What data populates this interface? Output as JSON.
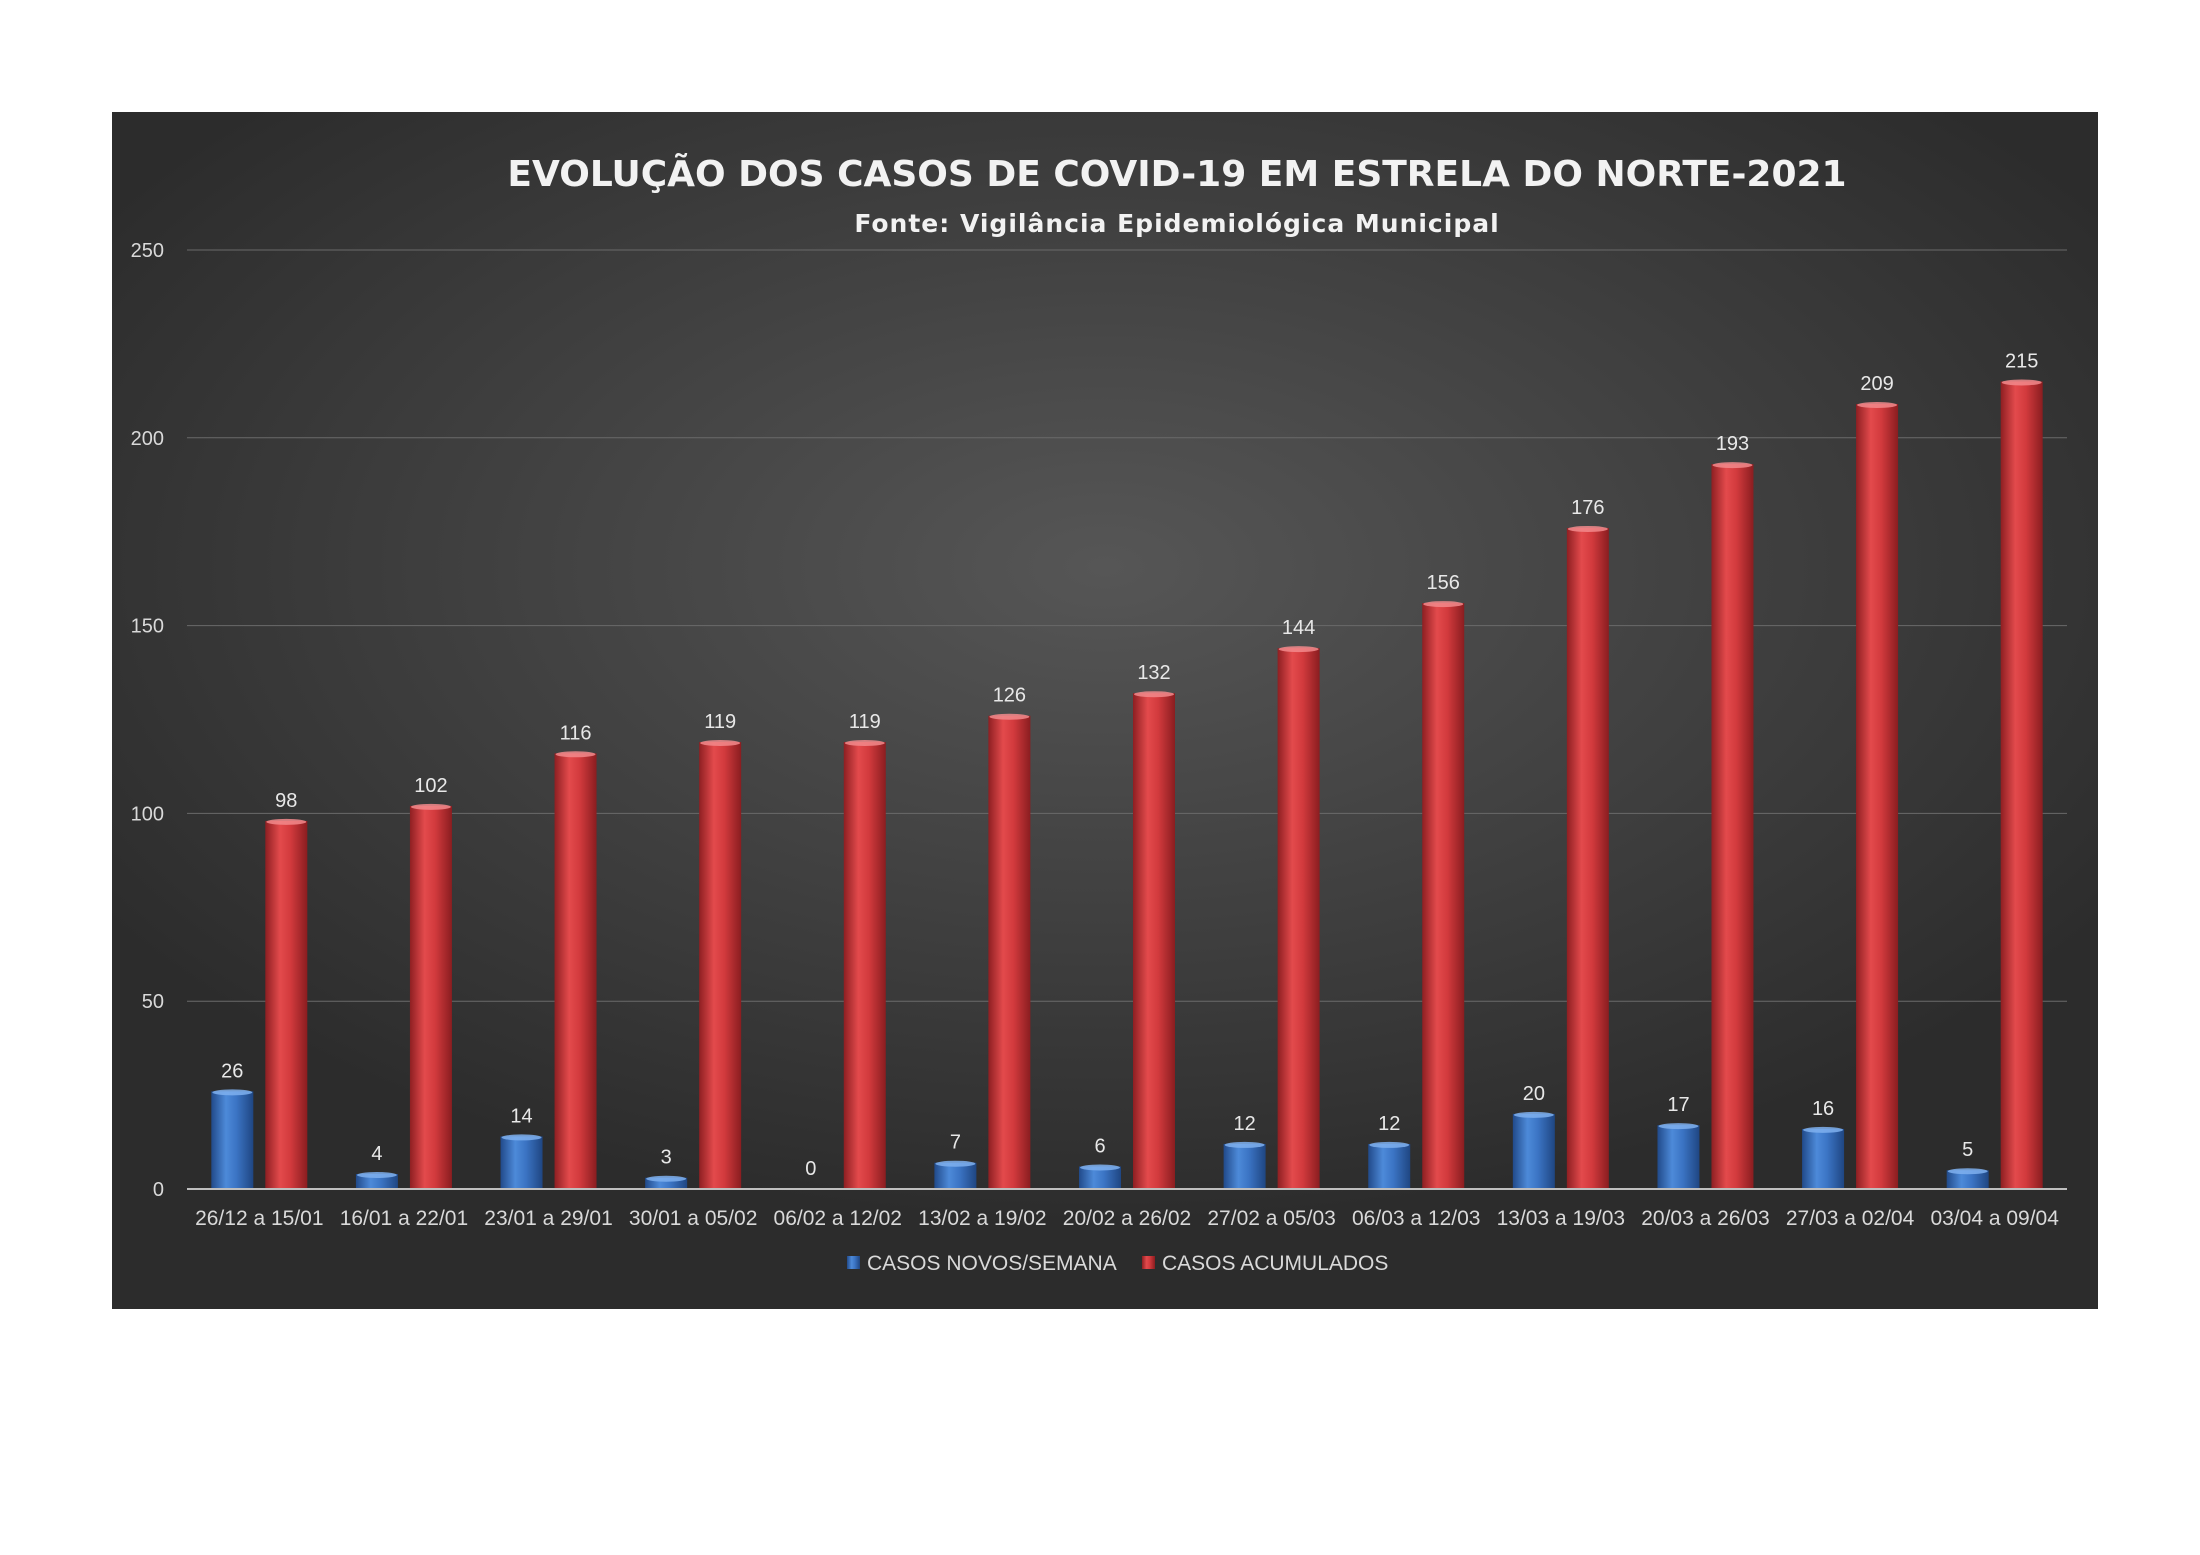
{
  "chart_data": {
    "type": "bar",
    "title": "EVOLUÇÃO DOS CASOS DE COVID-19 EM ESTRELA DO NORTE-2021",
    "subtitle": "Fonte: Vigilância Epidemiológica Municipal",
    "xlabel": "",
    "ylabel": "",
    "ylim": [
      0,
      250
    ],
    "yticks": [
      0,
      50,
      100,
      150,
      200,
      250
    ],
    "grid": true,
    "legend_position": "bottom",
    "categories": [
      "26/12 a 15/01",
      "16/01 a 22/01",
      "23/01 a 29/01",
      "30/01 a 05/02",
      "06/02 a 12/02",
      "13/02 a 19/02",
      "20/02 a 26/02",
      "27/02 a 05/03",
      "06/03 a 12/03",
      "13/03 a 19/03",
      "20/03 a 26/03",
      "27/03 a 02/04",
      "03/04 a 09/04"
    ],
    "series": [
      {
        "name": "CASOS NOVOS/SEMANA",
        "color": "#3f79c8",
        "values": [
          26,
          4,
          14,
          3,
          0,
          7,
          6,
          12,
          12,
          20,
          17,
          16,
          5
        ]
      },
      {
        "name": "CASOS ACUMULADOS",
        "color": "#d63a3c",
        "values": [
          98,
          102,
          116,
          119,
          119,
          126,
          132,
          144,
          156,
          176,
          193,
          209,
          215
        ]
      }
    ]
  }
}
